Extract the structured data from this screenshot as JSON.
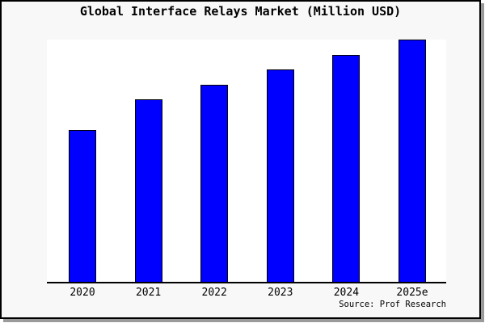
{
  "chart": {
    "title": "Global Interface Relays Market (Million USD)",
    "source_credit": "Source: Prof Research"
  },
  "chart_data": {
    "type": "bar",
    "title": "Global Interface Relays Market (Million USD)",
    "categories": [
      "2020",
      "2021",
      "2022",
      "2023",
      "2024",
      "2025e"
    ],
    "values": [
      62.8,
      75.2,
      81.5,
      87.6,
      93.7,
      100
    ],
    "values_note": "No y-axis scale or gridlines are shown in the chart; values are bar heights expressed as percent of the tallest bar (2025e = 100)",
    "xlabel": "",
    "ylabel": "",
    "ylim": [
      0,
      100
    ],
    "grid": false,
    "legend": null,
    "source": "Source: Prof Research"
  },
  "colors": {
    "background": "#F8F8F8",
    "plot_background": "#FFFFFF",
    "bar_fill": "#0000FF",
    "bar_border": "#000000",
    "axis": "#000000",
    "frame_border": "#000000",
    "shadow": "#9A9A9A",
    "text": "#000000"
  }
}
